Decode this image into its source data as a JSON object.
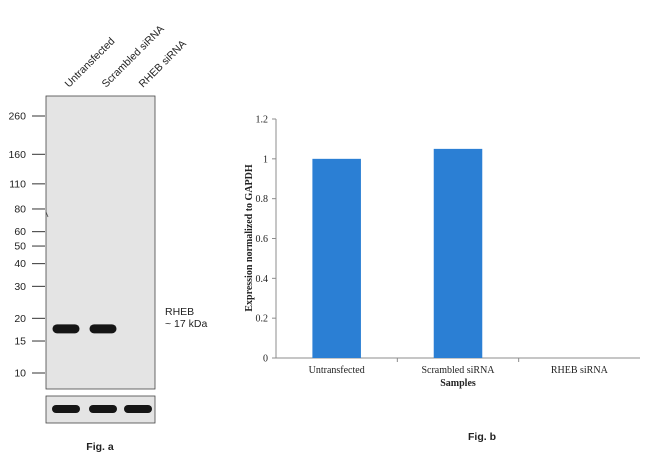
{
  "western_blot": {
    "lane_labels": [
      "Untransfected",
      "Scrambled siRNA",
      "RHEB siRNA"
    ],
    "marker_labels": [
      "260",
      "160",
      "110",
      "80",
      "60",
      "50",
      "40",
      "30",
      "20",
      "15",
      "10"
    ],
    "marker_values": [
      260,
      160,
      110,
      80,
      60,
      50,
      40,
      30,
      20,
      15,
      10
    ],
    "band_present": [
      true,
      true,
      false
    ],
    "loading_band_present": [
      true,
      true,
      true
    ],
    "band_label_line1": "RHEB",
    "band_label_line2": "~ 17 kDa",
    "caption": "Fig. a"
  },
  "chart_data": {
    "type": "bar",
    "title": "",
    "caption": "Fig. b",
    "categories": [
      "Untransfected",
      "Scrambled siRNA",
      "RHEB siRNA"
    ],
    "values": [
      1.0,
      1.05,
      0.0
    ],
    "xlabel": "Samples",
    "ylabel": "Expression normalized to GAPDH",
    "ylim": [
      0,
      1.2
    ],
    "yticks": [
      0,
      0.2,
      0.4,
      0.6,
      0.8,
      1,
      1.2
    ],
    "ytick_labels": [
      "0",
      "0.2",
      "0.4",
      "0.6",
      "0.8",
      "1",
      "1.2"
    ],
    "bar_color": "#2b7fd4",
    "grid": false
  }
}
